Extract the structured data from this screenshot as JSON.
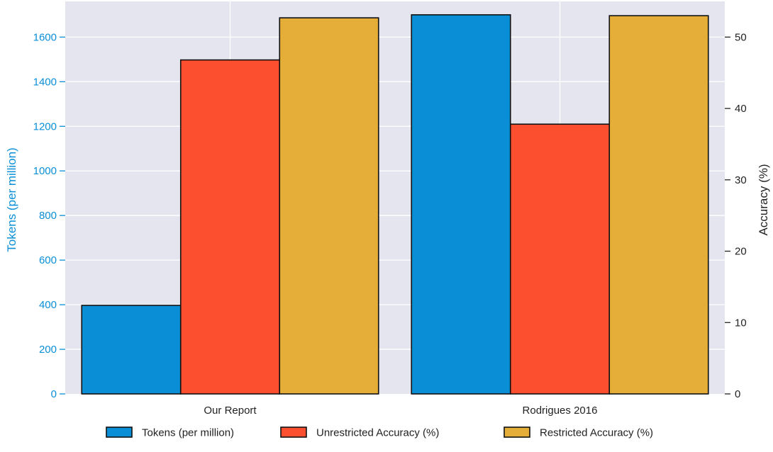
{
  "chart_data": {
    "type": "bar",
    "categories": [
      "Our Report",
      "Rodrigues 2016"
    ],
    "series": [
      {
        "name": "Tokens (per million)",
        "axis": "left",
        "values": [
          397,
          1700
        ],
        "color": "#0a8fd6"
      },
      {
        "name": "Unrestricted Accuracy (%)",
        "axis": "right",
        "values": [
          46.8,
          37.8
        ],
        "color": "#fc4f30"
      },
      {
        "name": "Restricted Accuracy (%)",
        "axis": "right",
        "values": [
          52.7,
          53.0
        ],
        "color": "#e5ae38"
      }
    ],
    "y_left": {
      "label": "Tokens (per million)",
      "label_color": "#0a8fd6",
      "range": [
        0,
        1760
      ],
      "ticks": [
        0,
        200,
        400,
        600,
        800,
        1000,
        1200,
        1400,
        1600
      ]
    },
    "y_right": {
      "label": "Accuracy (%)",
      "range": [
        0,
        55
      ],
      "ticks": [
        0,
        10,
        20,
        30,
        40,
        50
      ]
    },
    "grid": true,
    "plot_background": "#e5e5ef",
    "legend_position": "bottom"
  }
}
